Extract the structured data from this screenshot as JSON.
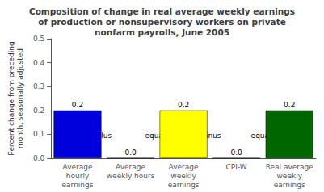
{
  "chart_data": {
    "type": "bar",
    "title": "Composition of change in real average weekly earnings\nof production or nonsupervisory workers on private\nnonfarm payrolls, June 2005",
    "ylabel": "Percent change from preceding\nmonth, seasonally adjusted",
    "categories": [
      "Average\nhourly\nearnings",
      "Average\nweekly hours",
      "Average\nweekly\nearnings",
      "CPI-W",
      "Real average\nweekly\nearnings"
    ],
    "values": [
      0.2,
      0.0,
      0.2,
      0.0,
      0.2
    ],
    "value_labels": [
      "0.2",
      "0.0",
      "0.2",
      "0.0",
      "0.2"
    ],
    "colors": [
      "#0000dd",
      "#0000dd",
      "#ffff00",
      "#0000dd",
      "#006600"
    ],
    "data_labels": true,
    "annotations": [
      {
        "text": "plus",
        "y": 0.08
      },
      {
        "text": "equals",
        "y": 0.08
      },
      {
        "text": "minus",
        "y": 0.08
      },
      {
        "text": "equals",
        "y": 0.08
      }
    ],
    "ylim": [
      0,
      0.5
    ],
    "yticks": [
      {
        "value": 0,
        "label": "0.0"
      },
      0.1,
      0.2,
      0.3,
      0.4,
      0.5
    ],
    "grid": false
  }
}
